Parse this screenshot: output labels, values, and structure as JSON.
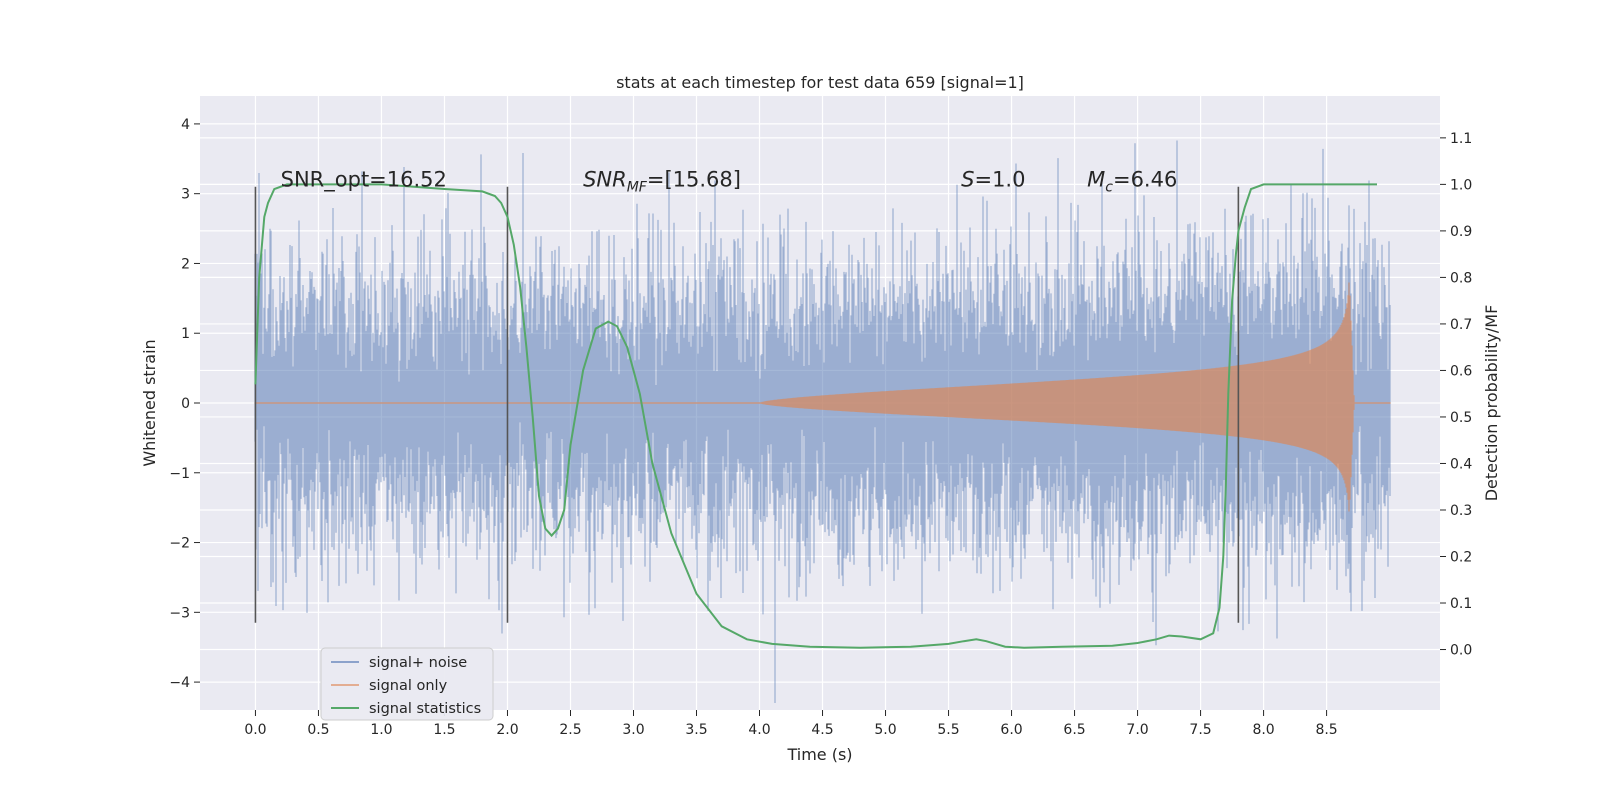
{
  "chart_data": {
    "type": "line",
    "title": "stats at each timestep for test data 659 [signal=1]",
    "xlabel": "Time (s)",
    "ylabel": "Whitened strain",
    "ylabel_right": "Detection probability/MF",
    "xlim": [
      -0.44,
      9.4
    ],
    "ylim": [
      -4.4,
      4.4
    ],
    "ylim_right": [
      -0.13,
      1.19
    ],
    "x_ticks": [
      0.0,
      0.5,
      1.0,
      1.5,
      2.0,
      2.5,
      3.0,
      3.5,
      4.0,
      4.5,
      5.0,
      5.5,
      6.0,
      6.5,
      7.0,
      7.5,
      8.0,
      8.5
    ],
    "x_tick_labels": [
      "0.0",
      "0.5",
      "1.0",
      "1.5",
      "2.0",
      "2.5",
      "3.0",
      "3.5",
      "4.0",
      "4.5",
      "5.0",
      "5.5",
      "6.0",
      "6.5",
      "7.0",
      "7.5",
      "8.0",
      "8.5"
    ],
    "y_ticks": [
      4,
      3,
      2,
      1,
      0,
      -1,
      -2,
      -3,
      -4
    ],
    "y_tick_labels": [
      "4",
      "3",
      "2",
      "1",
      "0",
      "−1",
      "−2",
      "−3",
      "−4"
    ],
    "y_right_ticks": [
      1.1,
      1.0,
      0.9,
      0.8,
      0.7,
      0.6,
      0.5,
      0.4,
      0.3,
      0.2,
      0.1,
      0.0
    ],
    "y_right_tick_labels": [
      "1.1",
      "1.0",
      "0.9",
      "0.8",
      "0.7",
      "0.6",
      "0.5",
      "0.4",
      "0.3",
      "0.2",
      "0.1",
      "0.0"
    ],
    "strain_time_range": [
      0.0,
      9.0
    ],
    "strain_envelope_sigma": 1.0,
    "chirp": {
      "start_time": 4.0,
      "merger_time": 8.68,
      "end_time": 8.72,
      "peak_amplitude": 1.8,
      "start_amplitude": 0.02
    },
    "vertical_markers": [
      0.0,
      2.0,
      7.8
    ],
    "vertical_marker_range": [
      -3.15,
      3.1
    ],
    "annotations": [
      {
        "text": "SNR_opt=16.52",
        "x": 0.2,
        "y": 3.1
      },
      {
        "text_main": "SNR",
        "text_sub": "MF",
        "text_rest": "=[15.68]",
        "x": 2.6,
        "y": 3.1
      },
      {
        "text_main": "S",
        "text_rest": "=1.0",
        "x": 5.6,
        "y": 3.1
      },
      {
        "text_main": "M",
        "text_sub": "c",
        "text_rest": "=6.46",
        "x": 6.6,
        "y": 3.1
      }
    ],
    "series": [
      {
        "name": "signal+ noise",
        "color": "#4c72b0",
        "opacity": 0.5
      },
      {
        "name": "signal only",
        "color": "#dd8452",
        "opacity": 0.5
      },
      {
        "name": "signal statistics",
        "color": "#55a868",
        "x": [
          0.0,
          0.03,
          0.07,
          0.1,
          0.15,
          0.25,
          0.4,
          0.6,
          1.0,
          1.5,
          1.8,
          1.9,
          1.95,
          2.0,
          2.05,
          2.1,
          2.15,
          2.2,
          2.25,
          2.3,
          2.35,
          2.4,
          2.45,
          2.5,
          2.6,
          2.7,
          2.8,
          2.87,
          2.95,
          3.05,
          3.15,
          3.3,
          3.5,
          3.7,
          3.9,
          4.1,
          4.4,
          4.8,
          5.2,
          5.5,
          5.62,
          5.72,
          5.8,
          5.95,
          6.1,
          6.4,
          6.8,
          7.0,
          7.15,
          7.25,
          7.35,
          7.5,
          7.6,
          7.65,
          7.68,
          7.7,
          7.72,
          7.75,
          7.78,
          7.8,
          7.85,
          7.9,
          8.0,
          8.5,
          8.9
        ],
        "y": [
          0.57,
          0.8,
          0.93,
          0.96,
          0.99,
          1.0,
          1.0,
          1.0,
          1.0,
          0.99,
          0.985,
          0.975,
          0.96,
          0.93,
          0.87,
          0.78,
          0.65,
          0.5,
          0.33,
          0.26,
          0.245,
          0.26,
          0.3,
          0.44,
          0.6,
          0.69,
          0.705,
          0.695,
          0.65,
          0.55,
          0.4,
          0.25,
          0.12,
          0.05,
          0.022,
          0.012,
          0.006,
          0.004,
          0.006,
          0.012,
          0.018,
          0.022,
          0.018,
          0.006,
          0.004,
          0.006,
          0.008,
          0.014,
          0.022,
          0.03,
          0.028,
          0.022,
          0.035,
          0.09,
          0.2,
          0.35,
          0.55,
          0.75,
          0.85,
          0.9,
          0.95,
          0.99,
          1.0,
          1.0,
          1.0
        ]
      }
    ],
    "legend_location": "lower-left"
  }
}
